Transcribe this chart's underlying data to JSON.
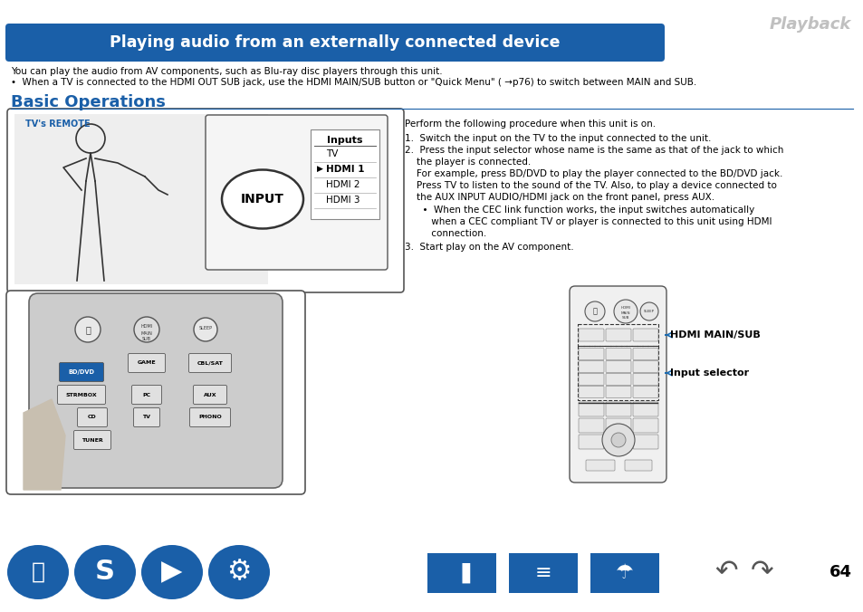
{
  "bg_color": "#ffffff",
  "page_number": "64",
  "playback_text": "Playback",
  "playback_color": "#c0c0c0",
  "header_bg": "#1a5fa8",
  "header_text": "Playing audio from an externally connected device",
  "header_text_color": "#ffffff",
  "section_title": "Basic Operations",
  "section_title_color": "#1a5fa8",
  "bullet1": "You can play the audio from AV components, such as Blu-ray disc players through this unit.",
  "bullet2": "•  When a TV is connected to the HDMI OUT SUB jack, use the HDMI MAIN/SUB button or \"Quick Menu\" ( →p76) to switch between MAIN and SUB.",
  "intro_text": "Perform the following procedure when this unit is on.",
  "step1": "Switch the input on the TV to the input connected to the unit.",
  "step2_head": "Press the input selector whose name is the same as that of the jack to which",
  "step2_cont": "    the player is connected.",
  "step2_eg1": "    For example, press BD/DVD to play the player connected to the BD/DVD jack.",
  "step2_eg2": "    Press TV to listen to the sound of the TV. Also, to play a device connected to",
  "step2_eg3": "    the AUX INPUT AUDIO/HDMI jack on the front panel, press AUX.",
  "step2_cec1": "      •  When the CEC link function works, the input switches automatically",
  "step2_cec2": "         when a CEC compliant TV or player is connected to this unit using HDMI",
  "step2_cec3": "         connection.",
  "step3": "Start play on the AV component.",
  "hdmi_label": "HDMI MAIN/SUB",
  "input_sel_label": "Input selector",
  "label_color": "#1a6ab0",
  "divider_color": "#1a5fa8",
  "footer_icon_color": "#1a5fa8",
  "tvremote_label": "TV's REMOTE",
  "tvremote_color": "#1a5fa8",
  "inputs_title": "Inputs",
  "input_items": [
    "TV",
    "HDMI 1",
    "HDMI 2",
    "HDMI 3"
  ],
  "input_arrow_idx": 1,
  "input_btn_text": "INPUT"
}
